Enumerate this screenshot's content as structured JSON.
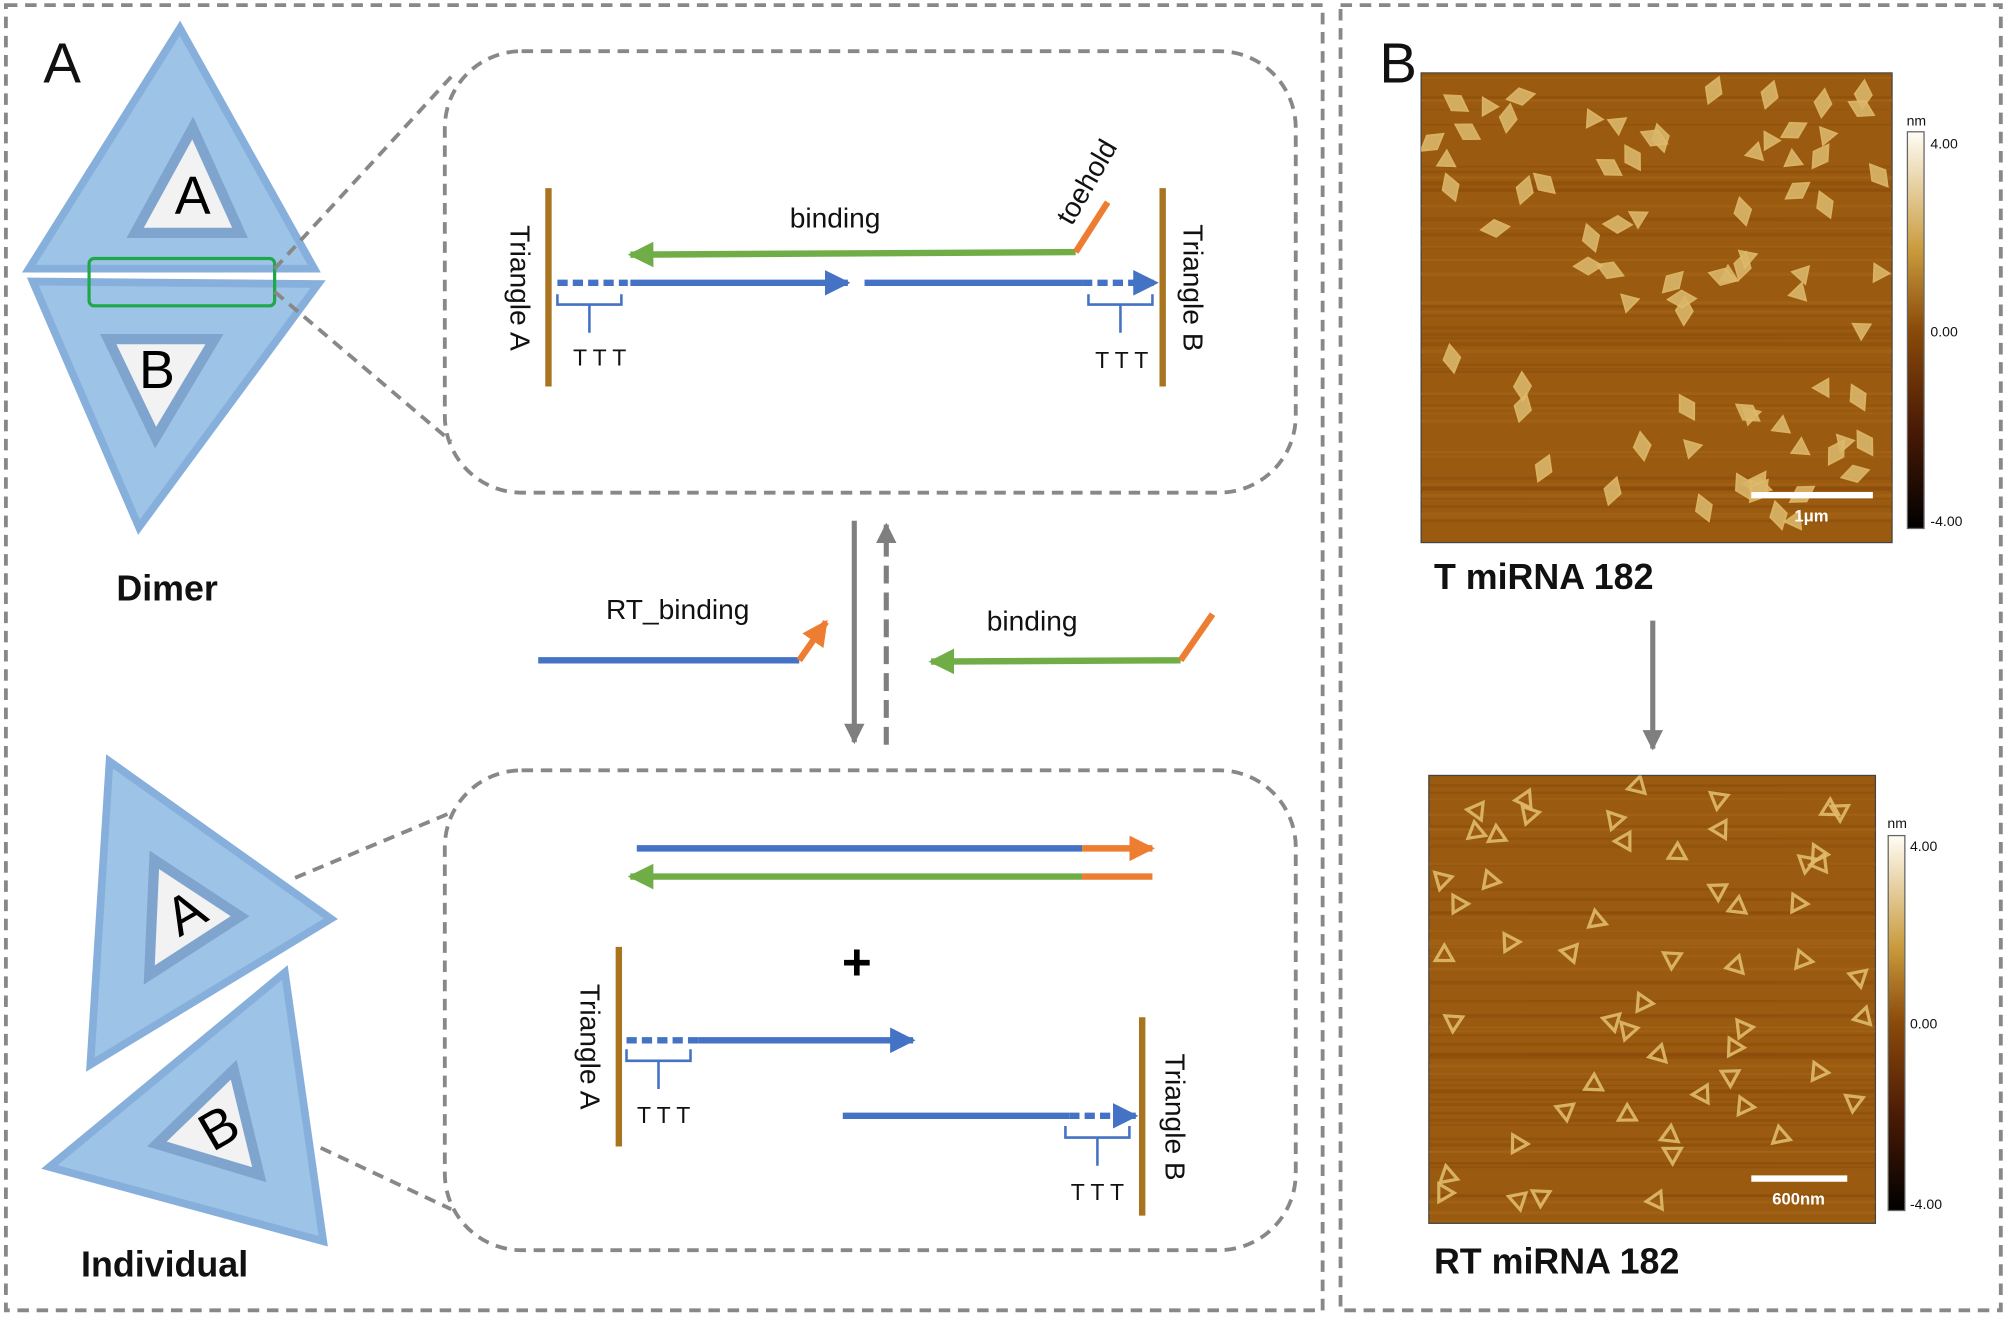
{
  "panel_a": {
    "label": "A",
    "dimer": {
      "triangle_labels": [
        "A",
        "B"
      ],
      "caption": "Dimer"
    },
    "individual": {
      "triangle_labels": [
        "A",
        "B"
      ],
      "caption": "Individual"
    },
    "dimer_detail": {
      "left_label": "Triangle A",
      "right_label": "Triangle B",
      "strand_label": "binding",
      "toehold_label": "toehold",
      "spacers": [
        "T T T",
        "T T T"
      ]
    },
    "reaction": {
      "left_label": "RT_binding",
      "right_label": "binding"
    },
    "individual_detail": {
      "plus": "+",
      "left_label": "Triangle A",
      "right_label": "Triangle B",
      "spacers": [
        "T T T",
        "T T T"
      ]
    }
  },
  "panel_b": {
    "label": "B",
    "images": [
      {
        "caption": "T miRNA 182",
        "scale_bar": "1μm",
        "colorbar": {
          "unit": "nm",
          "ticks": [
            "4.00",
            "0.00",
            "-4.00"
          ]
        }
      },
      {
        "caption": "RT miRNA 182",
        "scale_bar": "600nm",
        "colorbar": {
          "unit": "nm",
          "ticks": [
            "4.00",
            "0.00",
            "-4.00"
          ]
        }
      }
    ]
  }
}
